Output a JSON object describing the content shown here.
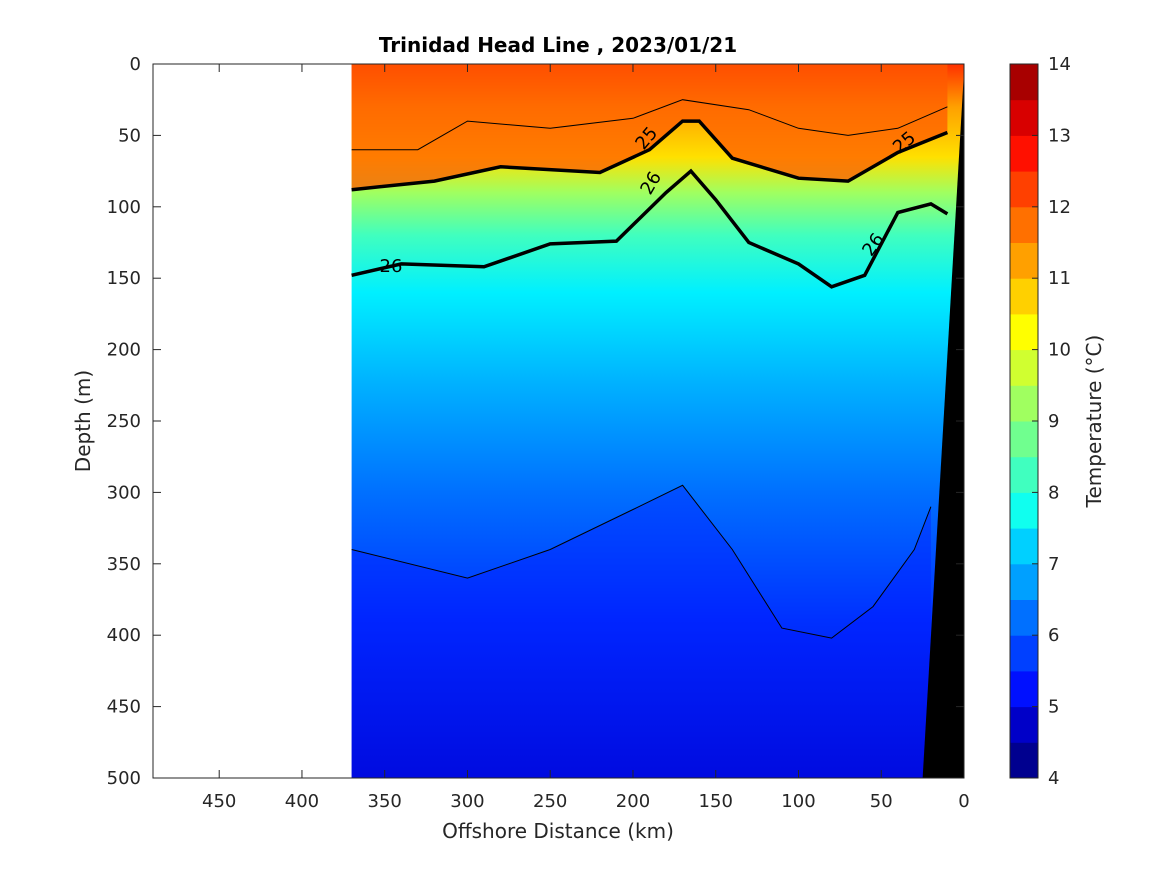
{
  "chart_data": {
    "type": "heatmap",
    "title": "Trinidad Head Line , 2023/01/21",
    "xlabel": "Offshore Distance (km)",
    "ylabel": "Depth (m)",
    "xlim": [
      490,
      0
    ],
    "ylim": [
      0,
      500
    ],
    "x_reversed": true,
    "y_reversed": true,
    "x_ticks": [
      "450",
      "400",
      "350",
      "300",
      "250",
      "200",
      "150",
      "100",
      "50",
      "0"
    ],
    "y_ticks": [
      "0",
      "50",
      "100",
      "150",
      "200",
      "250",
      "300",
      "350",
      "400",
      "450",
      "500"
    ],
    "colorbar": {
      "label": "Temperature (°C)",
      "range": [
        4,
        14
      ],
      "ticks": [
        "4",
        "5",
        "6",
        "7",
        "8",
        "9",
        "10",
        "11",
        "12",
        "13",
        "14"
      ],
      "levels": [
        4,
        4.5,
        5,
        5.5,
        6,
        6.5,
        7,
        7.5,
        8,
        8.5,
        9,
        9.5,
        10,
        10.5,
        11,
        11.5,
        12,
        12.5,
        13,
        13.5,
        14
      ],
      "colors": [
        "#00008f",
        "#0000c8",
        "#0010ff",
        "#0040ff",
        "#0070ff",
        "#00a0ff",
        "#00d0ff",
        "#10ffef",
        "#40ffbf",
        "#70ff8f",
        "#a0ff60",
        "#d0ff30",
        "#ffff00",
        "#ffd000",
        "#ffa000",
        "#ff7000",
        "#ff4000",
        "#ff1000",
        "#d80000",
        "#a80000"
      ]
    },
    "data_extent_km": [
      370,
      0
    ],
    "contour_labels": [
      "25",
      "25",
      "26",
      "26",
      "26"
    ],
    "isotherm_top_m": [
      {
        "x": 370,
        "depth": 60
      },
      {
        "x": 330,
        "depth": 60
      },
      {
        "x": 300,
        "depth": 40
      },
      {
        "x": 250,
        "depth": 45
      },
      {
        "x": 200,
        "depth": 38
      },
      {
        "x": 170,
        "depth": 25
      },
      {
        "x": 130,
        "depth": 32
      },
      {
        "x": 100,
        "depth": 45
      },
      {
        "x": 70,
        "depth": 50
      },
      {
        "x": 40,
        "depth": 45
      },
      {
        "x": 10,
        "depth": 30
      }
    ],
    "sigma_25_depth_m": [
      {
        "x": 370,
        "depth": 88
      },
      {
        "x": 320,
        "depth": 82
      },
      {
        "x": 280,
        "depth": 72
      },
      {
        "x": 220,
        "depth": 76
      },
      {
        "x": 190,
        "depth": 60
      },
      {
        "x": 170,
        "depth": 40
      },
      {
        "x": 160,
        "depth": 40
      },
      {
        "x": 140,
        "depth": 66
      },
      {
        "x": 100,
        "depth": 80
      },
      {
        "x": 70,
        "depth": 82
      },
      {
        "x": 40,
        "depth": 62
      },
      {
        "x": 10,
        "depth": 48
      }
    ],
    "sigma_26_depth_m": [
      {
        "x": 370,
        "depth": 148
      },
      {
        "x": 340,
        "depth": 140
      },
      {
        "x": 290,
        "depth": 142
      },
      {
        "x": 250,
        "depth": 126
      },
      {
        "x": 210,
        "depth": 124
      },
      {
        "x": 180,
        "depth": 90
      },
      {
        "x": 165,
        "depth": 75
      },
      {
        "x": 150,
        "depth": 95
      },
      {
        "x": 130,
        "depth": 125
      },
      {
        "x": 100,
        "depth": 140
      },
      {
        "x": 80,
        "depth": 156
      },
      {
        "x": 60,
        "depth": 148
      },
      {
        "x": 40,
        "depth": 104
      },
      {
        "x": 20,
        "depth": 98
      },
      {
        "x": 10,
        "depth": 105
      }
    ],
    "trough_depth_m": [
      {
        "x": 370,
        "depth": 340
      },
      {
        "x": 300,
        "depth": 360
      },
      {
        "x": 250,
        "depth": 340
      },
      {
        "x": 200,
        "depth": 312
      },
      {
        "x": 170,
        "depth": 295
      },
      {
        "x": 140,
        "depth": 340
      },
      {
        "x": 110,
        "depth": 395
      },
      {
        "x": 80,
        "depth": 402
      },
      {
        "x": 55,
        "depth": 380
      },
      {
        "x": 30,
        "depth": 340
      },
      {
        "x": 20,
        "depth": 310
      }
    ]
  }
}
